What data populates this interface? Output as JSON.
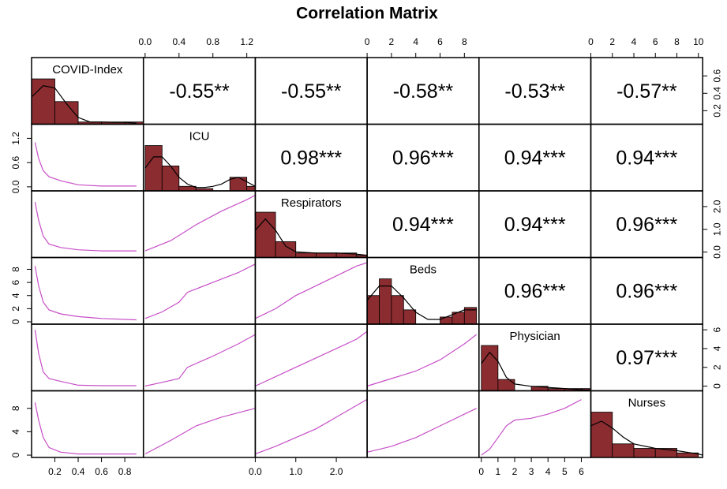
{
  "chart_data": {
    "type": "pairs",
    "title": "Correlation Matrix",
    "bar_color": "#8b2c30",
    "fit_color": "#c74fc7",
    "density_color": "#000000",
    "variables": [
      {
        "name": "COVID-Index",
        "xlim": [
          0,
          0.96
        ],
        "ylim": [
          0.045,
          0.81
        ],
        "xticks": [
          0.2,
          0.4,
          0.6,
          0.8
        ],
        "yticks": [
          0.2,
          0.4,
          0.6
        ],
        "bins": [
          0,
          0.2,
          0.4,
          0.6,
          0.8,
          0.96
        ],
        "counts": [
          20,
          10,
          1,
          1,
          1
        ],
        "density_x": [
          0,
          0.1,
          0.2,
          0.3,
          0.4,
          0.5,
          0.6,
          0.7,
          0.8,
          0.9
        ],
        "density_y": [
          12,
          17,
          16,
          9,
          3,
          1,
          1,
          0.8,
          0.8,
          0.5
        ]
      },
      {
        "name": "ICU",
        "xlim": [
          -0.02,
          1.3
        ],
        "ylim": [
          -0.1,
          1.55
        ],
        "xticks": [
          {
            "value": 0,
            "label": "0.0"
          },
          0.4,
          0.8,
          1.2
        ],
        "yticks": [
          {
            "value": 0,
            "label": "0.0"
          },
          0.6,
          1.2
        ],
        "bins": [
          0,
          0.2,
          0.4,
          0.6,
          0.8,
          1.0,
          1.2,
          1.3
        ],
        "counts": [
          20,
          11,
          2,
          1,
          0,
          6,
          2
        ],
        "density_x": [
          0,
          0.1,
          0.2,
          0.3,
          0.4,
          0.5,
          0.6,
          0.7,
          0.8,
          0.9,
          1.0,
          1.1,
          1.2,
          1.3
        ],
        "density_y": [
          10,
          15,
          15,
          11,
          6,
          3,
          1.5,
          1.5,
          2,
          3,
          5,
          6,
          4,
          2
        ]
      },
      {
        "name": "Respirators",
        "xlim": [
          0,
          2.76
        ],
        "ylim": [
          -0.24,
          2.69
        ],
        "xticks": [
          {
            "value": 0,
            "label": "0.0"
          },
          {
            "value": 1,
            "label": "1.0"
          },
          {
            "value": 2,
            "label": "2.0"
          }
        ],
        "yticks": [
          {
            "value": 0,
            "label": "0.0"
          },
          {
            "value": 1,
            "label": "1.0"
          },
          {
            "value": 2,
            "label": "2.0"
          }
        ],
        "bins": [
          0,
          0.5,
          1,
          1.5,
          2,
          2.5,
          2.75
        ],
        "counts": [
          20,
          7,
          2,
          2,
          2,
          1
        ],
        "density_x": [
          0,
          0.25,
          0.5,
          0.75,
          1,
          1.5,
          2,
          2.5,
          2.75
        ],
        "density_y": [
          12,
          17,
          12,
          5,
          2.5,
          2,
          2,
          1.5,
          1
        ]
      },
      {
        "name": "Beds",
        "xlim": [
          0,
          9.2
        ],
        "ylim": [
          -0.36,
          9.8
        ],
        "xticks": [
          0,
          2,
          4,
          6,
          8
        ],
        "yticks": [
          0,
          2,
          4,
          6,
          8
        ],
        "bins": [
          0,
          1,
          2,
          3,
          4,
          5,
          6,
          7,
          8,
          9
        ],
        "counts": [
          12,
          19,
          12,
          6,
          0,
          0,
          3,
          5,
          7
        ],
        "density_x": [
          0,
          1,
          2,
          3,
          4,
          5,
          6,
          7,
          8,
          9
        ],
        "density_y": [
          10,
          16,
          16,
          11,
          5,
          2,
          2,
          4,
          6,
          6
        ]
      },
      {
        "name": "Physician",
        "xlim": [
          -0.14,
          6.57
        ],
        "ylim": [
          -0.5,
          6.6
        ],
        "xticks": [
          0,
          1,
          2,
          3,
          4,
          5,
          6
        ],
        "yticks": [
          0,
          2,
          4,
          6
        ],
        "bins": [
          0,
          1,
          2,
          3,
          4,
          5,
          6,
          6.5
        ],
        "counts": [
          20,
          5,
          0,
          2,
          1,
          1,
          1
        ],
        "density_x": [
          0,
          0.5,
          1,
          1.5,
          2,
          3,
          4,
          5,
          6,
          6.5
        ],
        "density_y": [
          12,
          17,
          13,
          6,
          3,
          2,
          1.5,
          1,
          0.5,
          0.3
        ]
      },
      {
        "name": "Nurses",
        "xlim": [
          0,
          10.4
        ],
        "ylim": [
          -0.4,
          11
        ],
        "xticks": [
          0,
          2,
          4,
          6,
          8,
          10
        ],
        "yticks": [
          0,
          4,
          8
        ],
        "bins": [
          0,
          2,
          4,
          6,
          8,
          10
        ],
        "counts": [
          20,
          6,
          4,
          4,
          2
        ],
        "density_x": [
          0,
          1,
          2,
          3,
          4,
          6,
          8,
          10,
          10.4
        ],
        "density_y": [
          14,
          16,
          13,
          9,
          6,
          4,
          3,
          1.5,
          1
        ]
      }
    ],
    "correlations": {
      "values": [
        [
          -0.55,
          -0.55,
          -0.58,
          -0.53,
          -0.57
        ],
        [
          0.98,
          0.96,
          0.94,
          0.94
        ],
        [
          0.94,
          0.94,
          0.96
        ],
        [
          0.96,
          0.96
        ],
        [
          0.97
        ]
      ],
      "value_labels": [
        [
          "-0.55**",
          "-0.55**",
          "-0.58**",
          "-0.53**",
          "-0.57**"
        ],
        [
          "0.98***",
          "0.96***",
          "0.94***",
          "0.94***"
        ],
        [
          "0.94***",
          "0.94***",
          "0.96***"
        ],
        [
          "0.96***",
          "0.96***"
        ],
        [
          "0.97***"
        ]
      ]
    },
    "fits": [
      [
        {
          "x": [
            0.03,
            0.06,
            0.1,
            0.15,
            0.25,
            0.4,
            0.6,
            0.9
          ],
          "y": [
            1.1,
            0.7,
            0.4,
            0.25,
            0.15,
            0.05,
            0.02,
            0.02
          ]
        }
      ],
      [
        {
          "x": [
            0.03,
            0.06,
            0.1,
            0.15,
            0.25,
            0.4,
            0.6,
            0.9
          ],
          "y": [
            2.2,
            1.4,
            0.7,
            0.35,
            0.2,
            0.1,
            0.05,
            0.05
          ]
        },
        {
          "x": [
            0,
            0.3,
            0.6,
            0.9,
            1.2,
            1.3
          ],
          "y": [
            0.05,
            0.5,
            1.2,
            1.8,
            2.3,
            2.5
          ]
        }
      ],
      [
        {
          "x": [
            0.03,
            0.06,
            0.1,
            0.15,
            0.25,
            0.4,
            0.6,
            0.9
          ],
          "y": [
            8.5,
            5.5,
            3,
            1.8,
            1.2,
            0.8,
            0.5,
            0.3
          ]
        },
        {
          "x": [
            0,
            0.2,
            0.4,
            0.5,
            0.8,
            1.1,
            1.3
          ],
          "y": [
            0.5,
            1.5,
            3,
            4.5,
            6,
            7.5,
            8.8
          ]
        },
        {
          "x": [
            0,
            0.5,
            1,
            1.5,
            2,
            2.5,
            2.75
          ],
          "y": [
            0.5,
            2,
            4,
            5.5,
            7,
            8.5,
            9
          ]
        }
      ],
      [
        {
          "x": [
            0.03,
            0.06,
            0.1,
            0.15,
            0.25,
            0.4,
            0.6,
            0.9
          ],
          "y": [
            6,
            3.5,
            1.5,
            0.8,
            0.5,
            0.1,
            0.05,
            0.05
          ]
        },
        {
          "x": [
            0,
            0.2,
            0.4,
            0.5,
            0.8,
            1.1,
            1.3
          ],
          "y": [
            0,
            0.4,
            0.8,
            2,
            3.2,
            4.5,
            5.5
          ]
        },
        {
          "x": [
            0,
            0.5,
            1,
            1.5,
            2,
            2.5,
            2.75
          ],
          "y": [
            0,
            1,
            2,
            3,
            4,
            5,
            5.8
          ]
        },
        {
          "x": [
            0,
            2,
            4,
            6,
            8,
            9
          ],
          "y": [
            0,
            0.8,
            1.6,
            2.8,
            4.5,
            5.5
          ]
        }
      ],
      [
        {
          "x": [
            0.03,
            0.06,
            0.1,
            0.15,
            0.25,
            0.4,
            0.6,
            0.9
          ],
          "y": [
            9,
            6,
            3,
            1.3,
            0.5,
            0.2,
            0.2,
            0.2
          ]
        },
        {
          "x": [
            0,
            0.3,
            0.6,
            0.9,
            1.3
          ],
          "y": [
            0.2,
            2.5,
            5,
            6.5,
            8
          ]
        },
        {
          "x": [
            0,
            0.5,
            1,
            1.5,
            2,
            2.5,
            2.75
          ],
          "y": [
            0.2,
            1.5,
            3,
            4.5,
            6.5,
            8.5,
            9.5
          ]
        },
        {
          "x": [
            0,
            2,
            4,
            6,
            8,
            9
          ],
          "y": [
            0.5,
            1.5,
            3,
            5,
            7,
            8
          ]
        },
        {
          "x": [
            0,
            0.5,
            1,
            1.5,
            2,
            3,
            4,
            5,
            6
          ],
          "y": [
            0,
            1,
            3,
            5,
            6,
            6.3,
            7,
            8,
            9.5
          ]
        }
      ]
    ]
  }
}
